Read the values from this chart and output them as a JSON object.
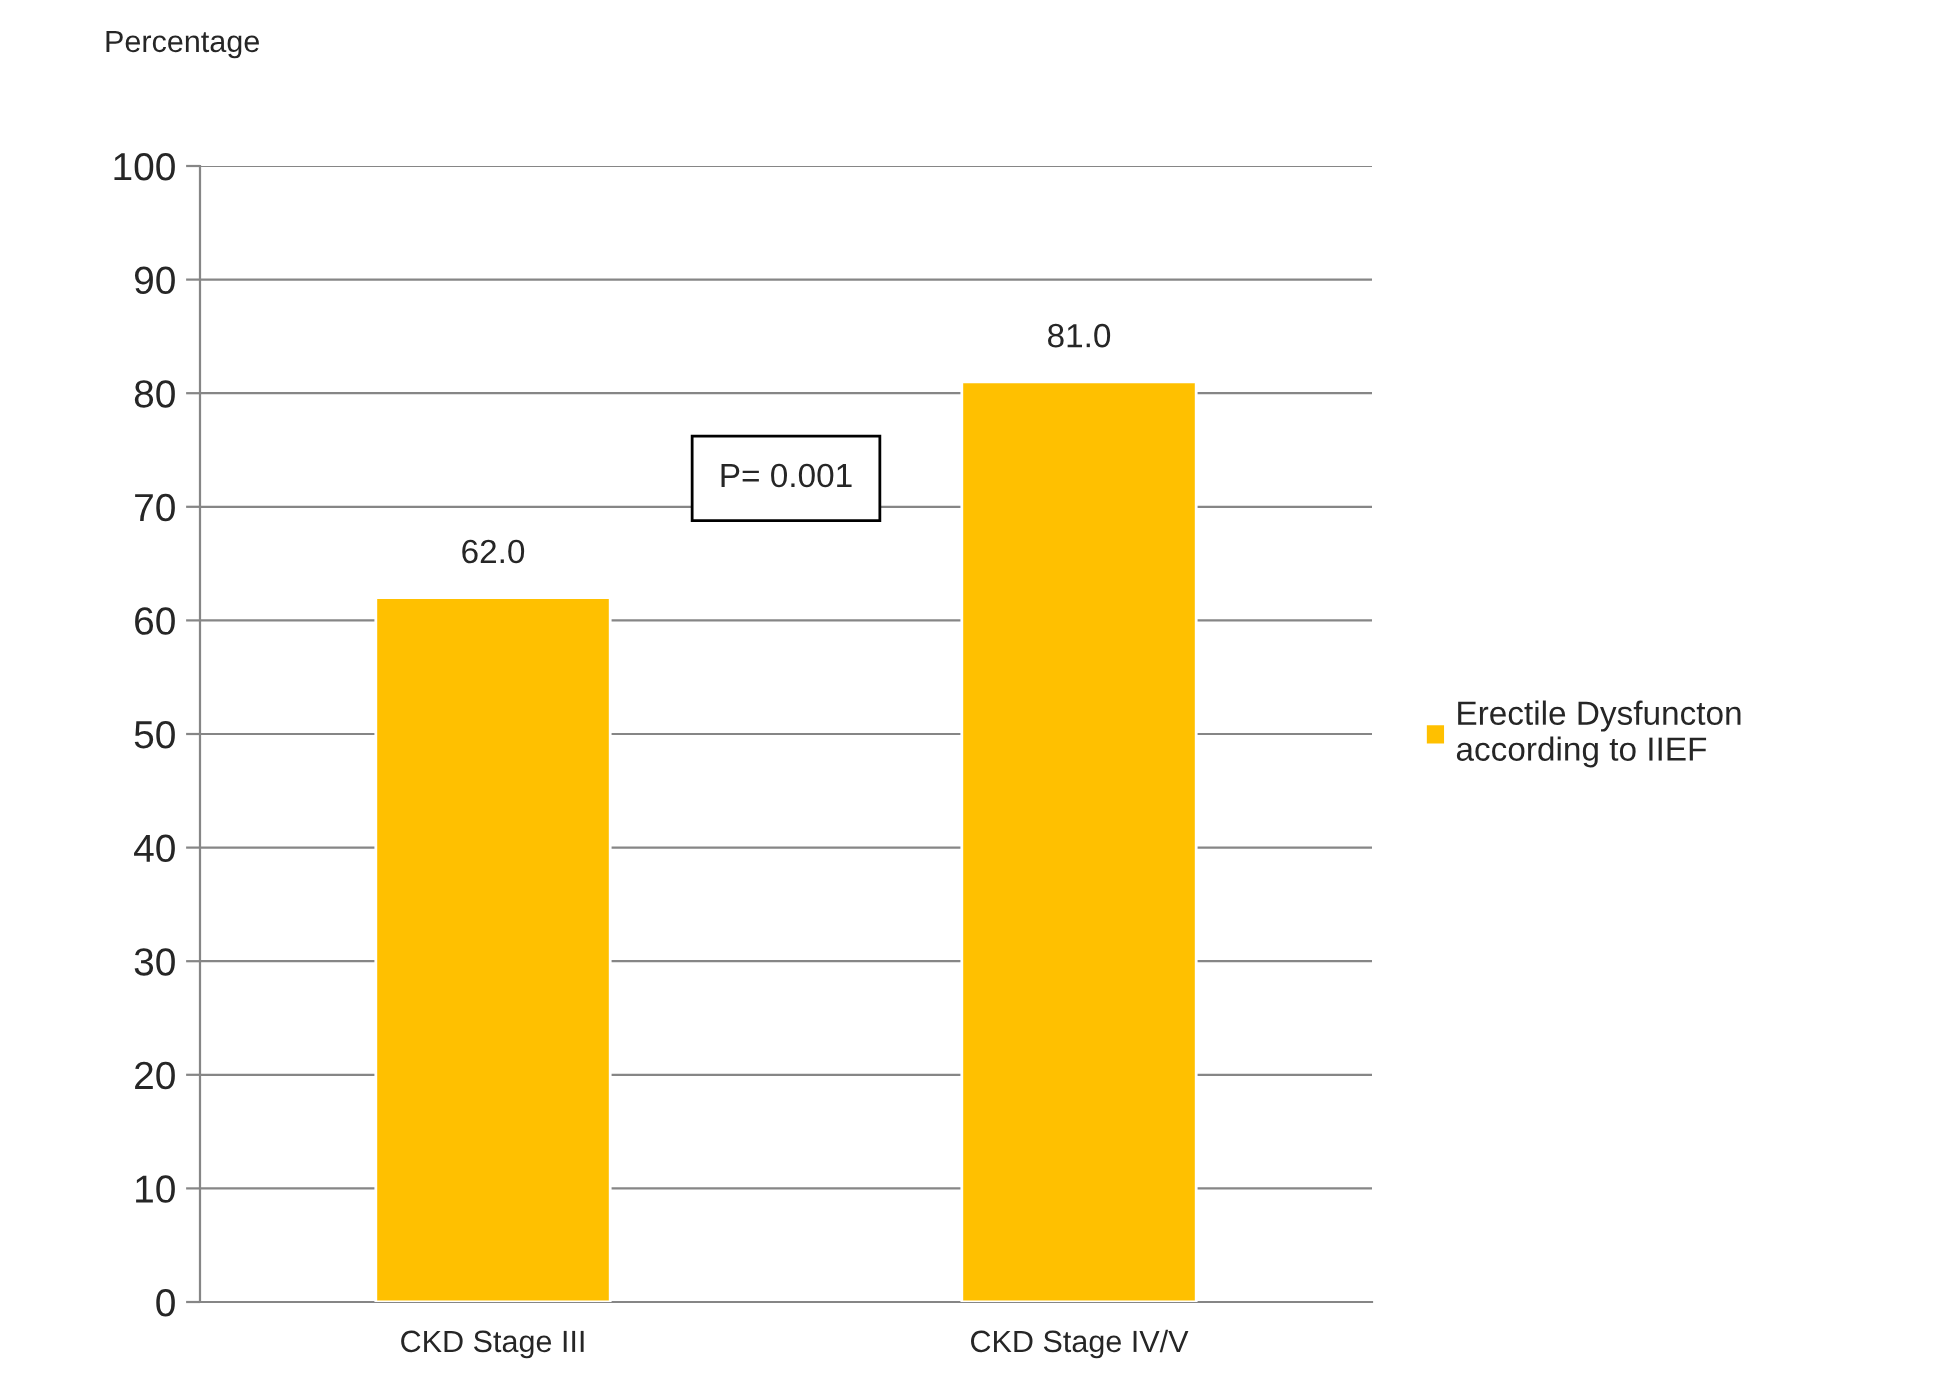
{
  "chart_data": {
    "type": "bar",
    "ylabel": "Percentage",
    "categories": [
      "CKD Stage III",
      "CKD Stage IV/V"
    ],
    "series": [
      {
        "name": "Erectile Dysfuncton\naccording to IIEF",
        "color": "#ffc000",
        "values": [
          62.0,
          81.0
        ],
        "value_labels": [
          "62.0",
          "81.0"
        ]
      }
    ],
    "ylim": [
      0,
      100
    ],
    "yticks": [
      0,
      10,
      20,
      30,
      40,
      50,
      60,
      70,
      80,
      90,
      100
    ],
    "grid": "y",
    "legend": "right",
    "annotations": [
      "P= 0.001"
    ]
  }
}
